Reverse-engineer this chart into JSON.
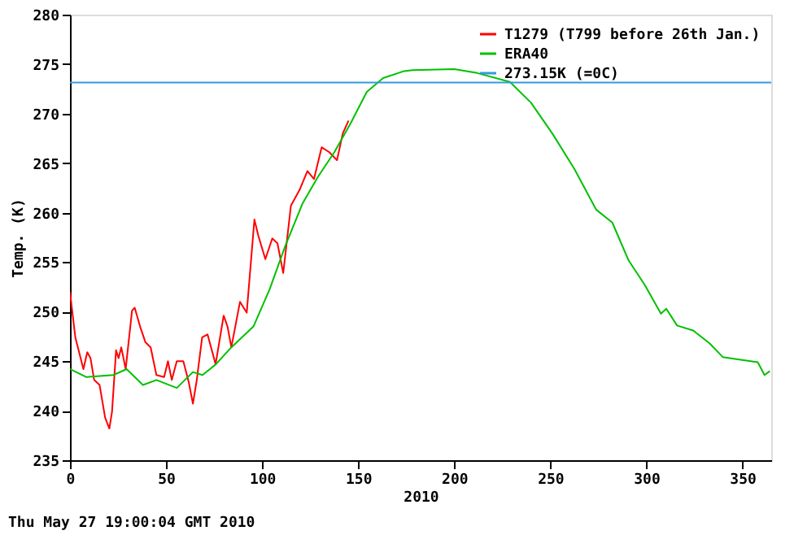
{
  "chart_data": {
    "type": "line",
    "xlabel": "2010",
    "ylabel": "Temp. (K)",
    "xlim": [
      0,
      365
    ],
    "xticks": [
      0,
      50,
      100,
      150,
      200,
      250,
      300,
      350
    ],
    "ylim": [
      235,
      280
    ],
    "yticks": [
      235,
      240,
      245,
      250,
      255,
      260,
      265,
      270,
      275,
      280
    ],
    "grid": false,
    "legend": "top right",
    "marker": "none",
    "line_style": "solid",
    "series": [
      {
        "name": "T1279 (T799 before 26th Jan.)",
        "color": "#ff0000",
        "x": [
          0,
          2.8,
          7,
          9,
          10.7,
          12.6,
          15.4,
          18.3,
          20.5,
          21.9,
          24,
          25.3,
          26.7,
          29,
          32.3,
          33.7,
          36.5,
          39.3,
          42,
          45,
          49,
          51,
          53,
          55.6,
          59,
          61.8,
          64,
          66,
          68.8,
          71.6,
          75.8,
          80,
          82,
          84,
          88.5,
          92,
          96,
          98,
          101.7,
          105.3,
          108,
          111,
          115,
          119.5,
          123.6,
          127,
          131,
          135,
          139,
          142,
          145
        ],
        "values": [
          252.0,
          247.4,
          244.2,
          245.9,
          245.3,
          243.1,
          242.6,
          239.3,
          238.2,
          239.9,
          246.1,
          245.3,
          246.4,
          244.2,
          250.1,
          250.4,
          248.5,
          246.9,
          246.4,
          243.6,
          243.4,
          245.0,
          243.1,
          245.0,
          245.0,
          242.9,
          240.7,
          243.1,
          247.4,
          247.7,
          244.7,
          249.6,
          248.5,
          246.4,
          251.0,
          249.9,
          259.3,
          257.7,
          255.3,
          257.4,
          256.9,
          253.9,
          260.7,
          262.3,
          264.2,
          263.4,
          266.6,
          266.1,
          265.3,
          268.0,
          269.3
        ]
      },
      {
        "name": "ERA40",
        "color": "#00c000",
        "x": [
          0,
          8.4,
          22.5,
          29.5,
          38,
          45,
          55.6,
          64,
          69,
          76,
          84,
          95.5,
          104,
          112,
          121,
          129,
          137.6,
          146,
          154.5,
          163,
          174,
          178.4,
          200,
          212,
          229,
          240,
          251.4,
          262.6,
          273.9,
          282.3,
          290.7,
          299.2,
          307.6,
          310.4,
          316,
          324.4,
          332.9,
          339.9,
          347,
          358,
          361.5,
          364.3
        ],
        "values": [
          244.2,
          243.4,
          243.6,
          244.2,
          242.6,
          243.1,
          242.3,
          243.9,
          243.6,
          244.7,
          246.4,
          248.5,
          252.3,
          256.6,
          260.9,
          263.6,
          266.1,
          269.0,
          272.2,
          273.6,
          274.3,
          274.4,
          274.5,
          274.1,
          273.2,
          271.1,
          267.9,
          264.4,
          260.3,
          259.0,
          255.2,
          252.7,
          249.8,
          250.3,
          248.6,
          248.1,
          246.8,
          245.4,
          245.2,
          244.9,
          243.6,
          244.0
        ]
      }
    ],
    "ref_lines": [
      {
        "axis": "y",
        "value": 273.15,
        "label": "273.15K (=0C)",
        "color": "#3399dd",
        "line_style": "solid"
      }
    ],
    "annotations": [
      "Thu May 27 19:00:04 GMT 2010"
    ]
  }
}
